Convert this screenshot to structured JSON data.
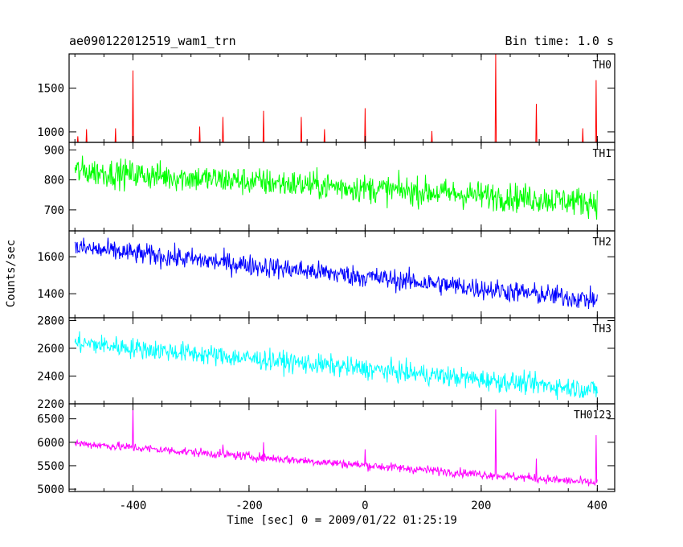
{
  "header": {
    "title": "ae090122012519_wam1_trn",
    "bin_time": "Bin time: 1.0 s"
  },
  "chart_data": {
    "type": "line",
    "xlabel": "Time [sec] 0 = 2009/01/22 01:25:19",
    "ylabel": "Counts/sec",
    "xlim": [
      -510,
      430
    ],
    "x_ticks": [
      -400,
      -200,
      0,
      200,
      400
    ],
    "x_range": [
      -500,
      400
    ],
    "panels": [
      {
        "name": "TH0",
        "color": "#ff0000",
        "ylim": [
          880,
          1890
        ],
        "yticks": [
          1000,
          1500
        ],
        "baseline_start": 840,
        "baseline_end": 830,
        "noise": 28,
        "spikes": [
          [
            -495,
            950
          ],
          [
            -480,
            1030
          ],
          [
            -430,
            1040
          ],
          [
            -400,
            1700
          ],
          [
            -285,
            1060
          ],
          [
            -245,
            1170
          ],
          [
            -175,
            1240
          ],
          [
            -110,
            1170
          ],
          [
            -70,
            1030
          ],
          [
            0,
            1270
          ],
          [
            115,
            1010
          ],
          [
            225,
            1890
          ],
          [
            295,
            1320
          ],
          [
            375,
            1040
          ],
          [
            398,
            1590
          ]
        ]
      },
      {
        "name": "TH1",
        "color": "#00ff00",
        "ylim": [
          630,
          925
        ],
        "yticks": [
          700,
          800,
          900
        ],
        "baseline_start": 830,
        "baseline_end": 725,
        "noise": 45,
        "spikes": []
      },
      {
        "name": "TH2",
        "color": "#0000ff",
        "ylim": [
          1270,
          1740
        ],
        "yticks": [
          1400,
          1600
        ],
        "baseline_start": 1650,
        "baseline_end": 1365,
        "noise": 55,
        "spikes": []
      },
      {
        "name": "TH3",
        "color": "#00ffff",
        "ylim": [
          2200,
          2820
        ],
        "yticks": [
          2200,
          2400,
          2600,
          2800
        ],
        "baseline_start": 2640,
        "baseline_end": 2300,
        "noise": 70,
        "spikes": []
      },
      {
        "name": "TH0123",
        "color": "#ff00ff",
        "ylim": [
          4950,
          6820
        ],
        "yticks": [
          5000,
          5500,
          6000,
          6500
        ],
        "baseline_start": 5980,
        "baseline_end": 5130,
        "noise": 90,
        "spikes": [
          [
            -400,
            6750
          ],
          [
            -245,
            5950
          ],
          [
            -175,
            6000
          ],
          [
            0,
            5850
          ],
          [
            225,
            6700
          ],
          [
            295,
            5650
          ],
          [
            398,
            6150
          ]
        ]
      }
    ]
  }
}
